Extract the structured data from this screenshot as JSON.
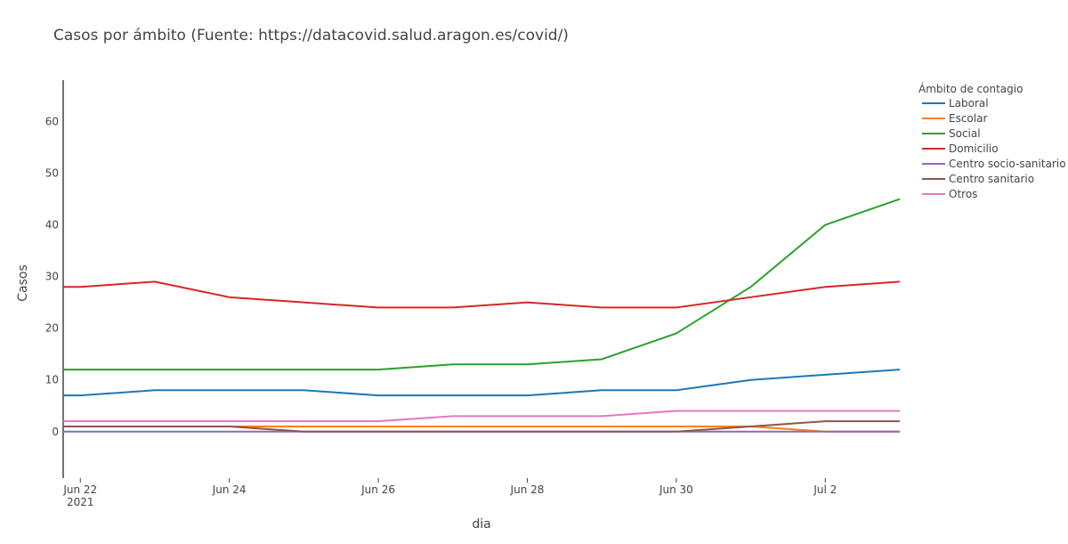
{
  "chart_data": {
    "type": "line",
    "title": "Casos por ámbito (Fuente: https://datacovid.salud.aragon.es/covid/)",
    "xlabel": "dia",
    "ylabel": "Casos",
    "x_range": [
      "2021-06-21",
      "2021-07-03"
    ],
    "ylim": [
      -9,
      68
    ],
    "y_ticks": [
      0,
      10,
      20,
      30,
      40,
      50,
      60
    ],
    "x_ticks": [
      {
        "date": "2021-06-22",
        "label": "Jun 22",
        "sublabel": "2021"
      },
      {
        "date": "2021-06-24",
        "label": "Jun 24"
      },
      {
        "date": "2021-06-26",
        "label": "Jun 26"
      },
      {
        "date": "2021-06-28",
        "label": "Jun 28"
      },
      {
        "date": "2021-06-30",
        "label": "Jun 30"
      },
      {
        "date": "2021-07-02",
        "label": "Jul 2"
      }
    ],
    "x": [
      "2021-06-22",
      "2021-06-23",
      "2021-06-24",
      "2021-06-25",
      "2021-06-26",
      "2021-06-27",
      "2021-06-28",
      "2021-06-29",
      "2021-06-30",
      "2021-07-01",
      "2021-07-02",
      "2021-07-03"
    ],
    "grid": false,
    "zero_line": true,
    "legend": {
      "title": "Ámbito de contagio",
      "placement": "right"
    },
    "series": [
      {
        "name": "Laboral",
        "color": "#1f77b4",
        "values": [
          7,
          8,
          8,
          8,
          7,
          7,
          7,
          8,
          8,
          10,
          11,
          12
        ]
      },
      {
        "name": "Escolar",
        "color": "#ff7f0e",
        "values": [
          1,
          1,
          1,
          1,
          1,
          1,
          1,
          1,
          1,
          1,
          0,
          0
        ]
      },
      {
        "name": "Social",
        "color": "#2ca02c",
        "values": [
          12,
          12,
          12,
          12,
          12,
          13,
          13,
          14,
          19,
          28,
          40,
          45
        ]
      },
      {
        "name": "Domicilio",
        "color": "#d62728",
        "values": [
          28,
          29,
          26,
          25,
          24,
          24,
          25,
          24,
          24,
          26,
          28,
          29
        ]
      },
      {
        "name": "Centro socio-sanitario",
        "color": "#9467bd",
        "values": [
          0,
          0,
          0,
          0,
          0,
          0,
          0,
          0,
          0,
          0,
          0,
          0
        ]
      },
      {
        "name": "Centro sanitario",
        "color": "#8c564b",
        "values": [
          1,
          1,
          1,
          0,
          0,
          0,
          0,
          0,
          0,
          1,
          2,
          2
        ]
      },
      {
        "name": "Otros",
        "color": "#e377c2",
        "values": [
          2,
          2,
          2,
          2,
          2,
          3,
          3,
          3,
          4,
          4,
          4,
          4
        ]
      }
    ]
  }
}
